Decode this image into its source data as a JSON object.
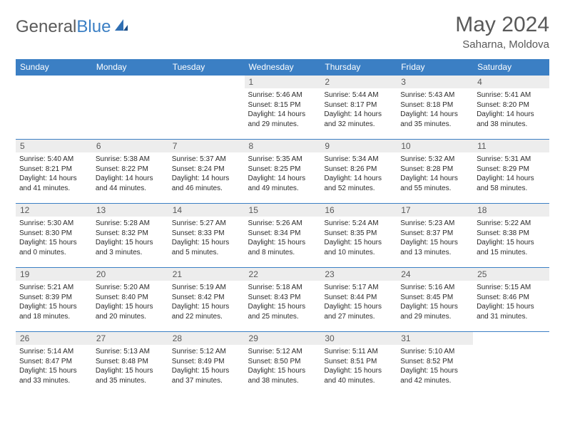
{
  "logo": {
    "text1": "General",
    "text2": "Blue"
  },
  "title": "May 2024",
  "location": "Saharna, Moldova",
  "colors": {
    "header_bg": "#3b7fc4",
    "header_text": "#ffffff",
    "daynum_bg": "#ededed",
    "daynum_text": "#595959",
    "body_text": "#2b2b2b",
    "rule": "#3b7fc4"
  },
  "weekdays": [
    "Sunday",
    "Monday",
    "Tuesday",
    "Wednesday",
    "Thursday",
    "Friday",
    "Saturday"
  ],
  "weeks": [
    [
      {
        "n": "",
        "sr": "",
        "ss": "",
        "d1": "",
        "d2": ""
      },
      {
        "n": "",
        "sr": "",
        "ss": "",
        "d1": "",
        "d2": ""
      },
      {
        "n": "",
        "sr": "",
        "ss": "",
        "d1": "",
        "d2": ""
      },
      {
        "n": "1",
        "sr": "Sunrise: 5:46 AM",
        "ss": "Sunset: 8:15 PM",
        "d1": "Daylight: 14 hours",
        "d2": "and 29 minutes."
      },
      {
        "n": "2",
        "sr": "Sunrise: 5:44 AM",
        "ss": "Sunset: 8:17 PM",
        "d1": "Daylight: 14 hours",
        "d2": "and 32 minutes."
      },
      {
        "n": "3",
        "sr": "Sunrise: 5:43 AM",
        "ss": "Sunset: 8:18 PM",
        "d1": "Daylight: 14 hours",
        "d2": "and 35 minutes."
      },
      {
        "n": "4",
        "sr": "Sunrise: 5:41 AM",
        "ss": "Sunset: 8:20 PM",
        "d1": "Daylight: 14 hours",
        "d2": "and 38 minutes."
      }
    ],
    [
      {
        "n": "5",
        "sr": "Sunrise: 5:40 AM",
        "ss": "Sunset: 8:21 PM",
        "d1": "Daylight: 14 hours",
        "d2": "and 41 minutes."
      },
      {
        "n": "6",
        "sr": "Sunrise: 5:38 AM",
        "ss": "Sunset: 8:22 PM",
        "d1": "Daylight: 14 hours",
        "d2": "and 44 minutes."
      },
      {
        "n": "7",
        "sr": "Sunrise: 5:37 AM",
        "ss": "Sunset: 8:24 PM",
        "d1": "Daylight: 14 hours",
        "d2": "and 46 minutes."
      },
      {
        "n": "8",
        "sr": "Sunrise: 5:35 AM",
        "ss": "Sunset: 8:25 PM",
        "d1": "Daylight: 14 hours",
        "d2": "and 49 minutes."
      },
      {
        "n": "9",
        "sr": "Sunrise: 5:34 AM",
        "ss": "Sunset: 8:26 PM",
        "d1": "Daylight: 14 hours",
        "d2": "and 52 minutes."
      },
      {
        "n": "10",
        "sr": "Sunrise: 5:32 AM",
        "ss": "Sunset: 8:28 PM",
        "d1": "Daylight: 14 hours",
        "d2": "and 55 minutes."
      },
      {
        "n": "11",
        "sr": "Sunrise: 5:31 AM",
        "ss": "Sunset: 8:29 PM",
        "d1": "Daylight: 14 hours",
        "d2": "and 58 minutes."
      }
    ],
    [
      {
        "n": "12",
        "sr": "Sunrise: 5:30 AM",
        "ss": "Sunset: 8:30 PM",
        "d1": "Daylight: 15 hours",
        "d2": "and 0 minutes."
      },
      {
        "n": "13",
        "sr": "Sunrise: 5:28 AM",
        "ss": "Sunset: 8:32 PM",
        "d1": "Daylight: 15 hours",
        "d2": "and 3 minutes."
      },
      {
        "n": "14",
        "sr": "Sunrise: 5:27 AM",
        "ss": "Sunset: 8:33 PM",
        "d1": "Daylight: 15 hours",
        "d2": "and 5 minutes."
      },
      {
        "n": "15",
        "sr": "Sunrise: 5:26 AM",
        "ss": "Sunset: 8:34 PM",
        "d1": "Daylight: 15 hours",
        "d2": "and 8 minutes."
      },
      {
        "n": "16",
        "sr": "Sunrise: 5:24 AM",
        "ss": "Sunset: 8:35 PM",
        "d1": "Daylight: 15 hours",
        "d2": "and 10 minutes."
      },
      {
        "n": "17",
        "sr": "Sunrise: 5:23 AM",
        "ss": "Sunset: 8:37 PM",
        "d1": "Daylight: 15 hours",
        "d2": "and 13 minutes."
      },
      {
        "n": "18",
        "sr": "Sunrise: 5:22 AM",
        "ss": "Sunset: 8:38 PM",
        "d1": "Daylight: 15 hours",
        "d2": "and 15 minutes."
      }
    ],
    [
      {
        "n": "19",
        "sr": "Sunrise: 5:21 AM",
        "ss": "Sunset: 8:39 PM",
        "d1": "Daylight: 15 hours",
        "d2": "and 18 minutes."
      },
      {
        "n": "20",
        "sr": "Sunrise: 5:20 AM",
        "ss": "Sunset: 8:40 PM",
        "d1": "Daylight: 15 hours",
        "d2": "and 20 minutes."
      },
      {
        "n": "21",
        "sr": "Sunrise: 5:19 AM",
        "ss": "Sunset: 8:42 PM",
        "d1": "Daylight: 15 hours",
        "d2": "and 22 minutes."
      },
      {
        "n": "22",
        "sr": "Sunrise: 5:18 AM",
        "ss": "Sunset: 8:43 PM",
        "d1": "Daylight: 15 hours",
        "d2": "and 25 minutes."
      },
      {
        "n": "23",
        "sr": "Sunrise: 5:17 AM",
        "ss": "Sunset: 8:44 PM",
        "d1": "Daylight: 15 hours",
        "d2": "and 27 minutes."
      },
      {
        "n": "24",
        "sr": "Sunrise: 5:16 AM",
        "ss": "Sunset: 8:45 PM",
        "d1": "Daylight: 15 hours",
        "d2": "and 29 minutes."
      },
      {
        "n": "25",
        "sr": "Sunrise: 5:15 AM",
        "ss": "Sunset: 8:46 PM",
        "d1": "Daylight: 15 hours",
        "d2": "and 31 minutes."
      }
    ],
    [
      {
        "n": "26",
        "sr": "Sunrise: 5:14 AM",
        "ss": "Sunset: 8:47 PM",
        "d1": "Daylight: 15 hours",
        "d2": "and 33 minutes."
      },
      {
        "n": "27",
        "sr": "Sunrise: 5:13 AM",
        "ss": "Sunset: 8:48 PM",
        "d1": "Daylight: 15 hours",
        "d2": "and 35 minutes."
      },
      {
        "n": "28",
        "sr": "Sunrise: 5:12 AM",
        "ss": "Sunset: 8:49 PM",
        "d1": "Daylight: 15 hours",
        "d2": "and 37 minutes."
      },
      {
        "n": "29",
        "sr": "Sunrise: 5:12 AM",
        "ss": "Sunset: 8:50 PM",
        "d1": "Daylight: 15 hours",
        "d2": "and 38 minutes."
      },
      {
        "n": "30",
        "sr": "Sunrise: 5:11 AM",
        "ss": "Sunset: 8:51 PM",
        "d1": "Daylight: 15 hours",
        "d2": "and 40 minutes."
      },
      {
        "n": "31",
        "sr": "Sunrise: 5:10 AM",
        "ss": "Sunset: 8:52 PM",
        "d1": "Daylight: 15 hours",
        "d2": "and 42 minutes."
      },
      {
        "n": "",
        "sr": "",
        "ss": "",
        "d1": "",
        "d2": ""
      }
    ]
  ]
}
